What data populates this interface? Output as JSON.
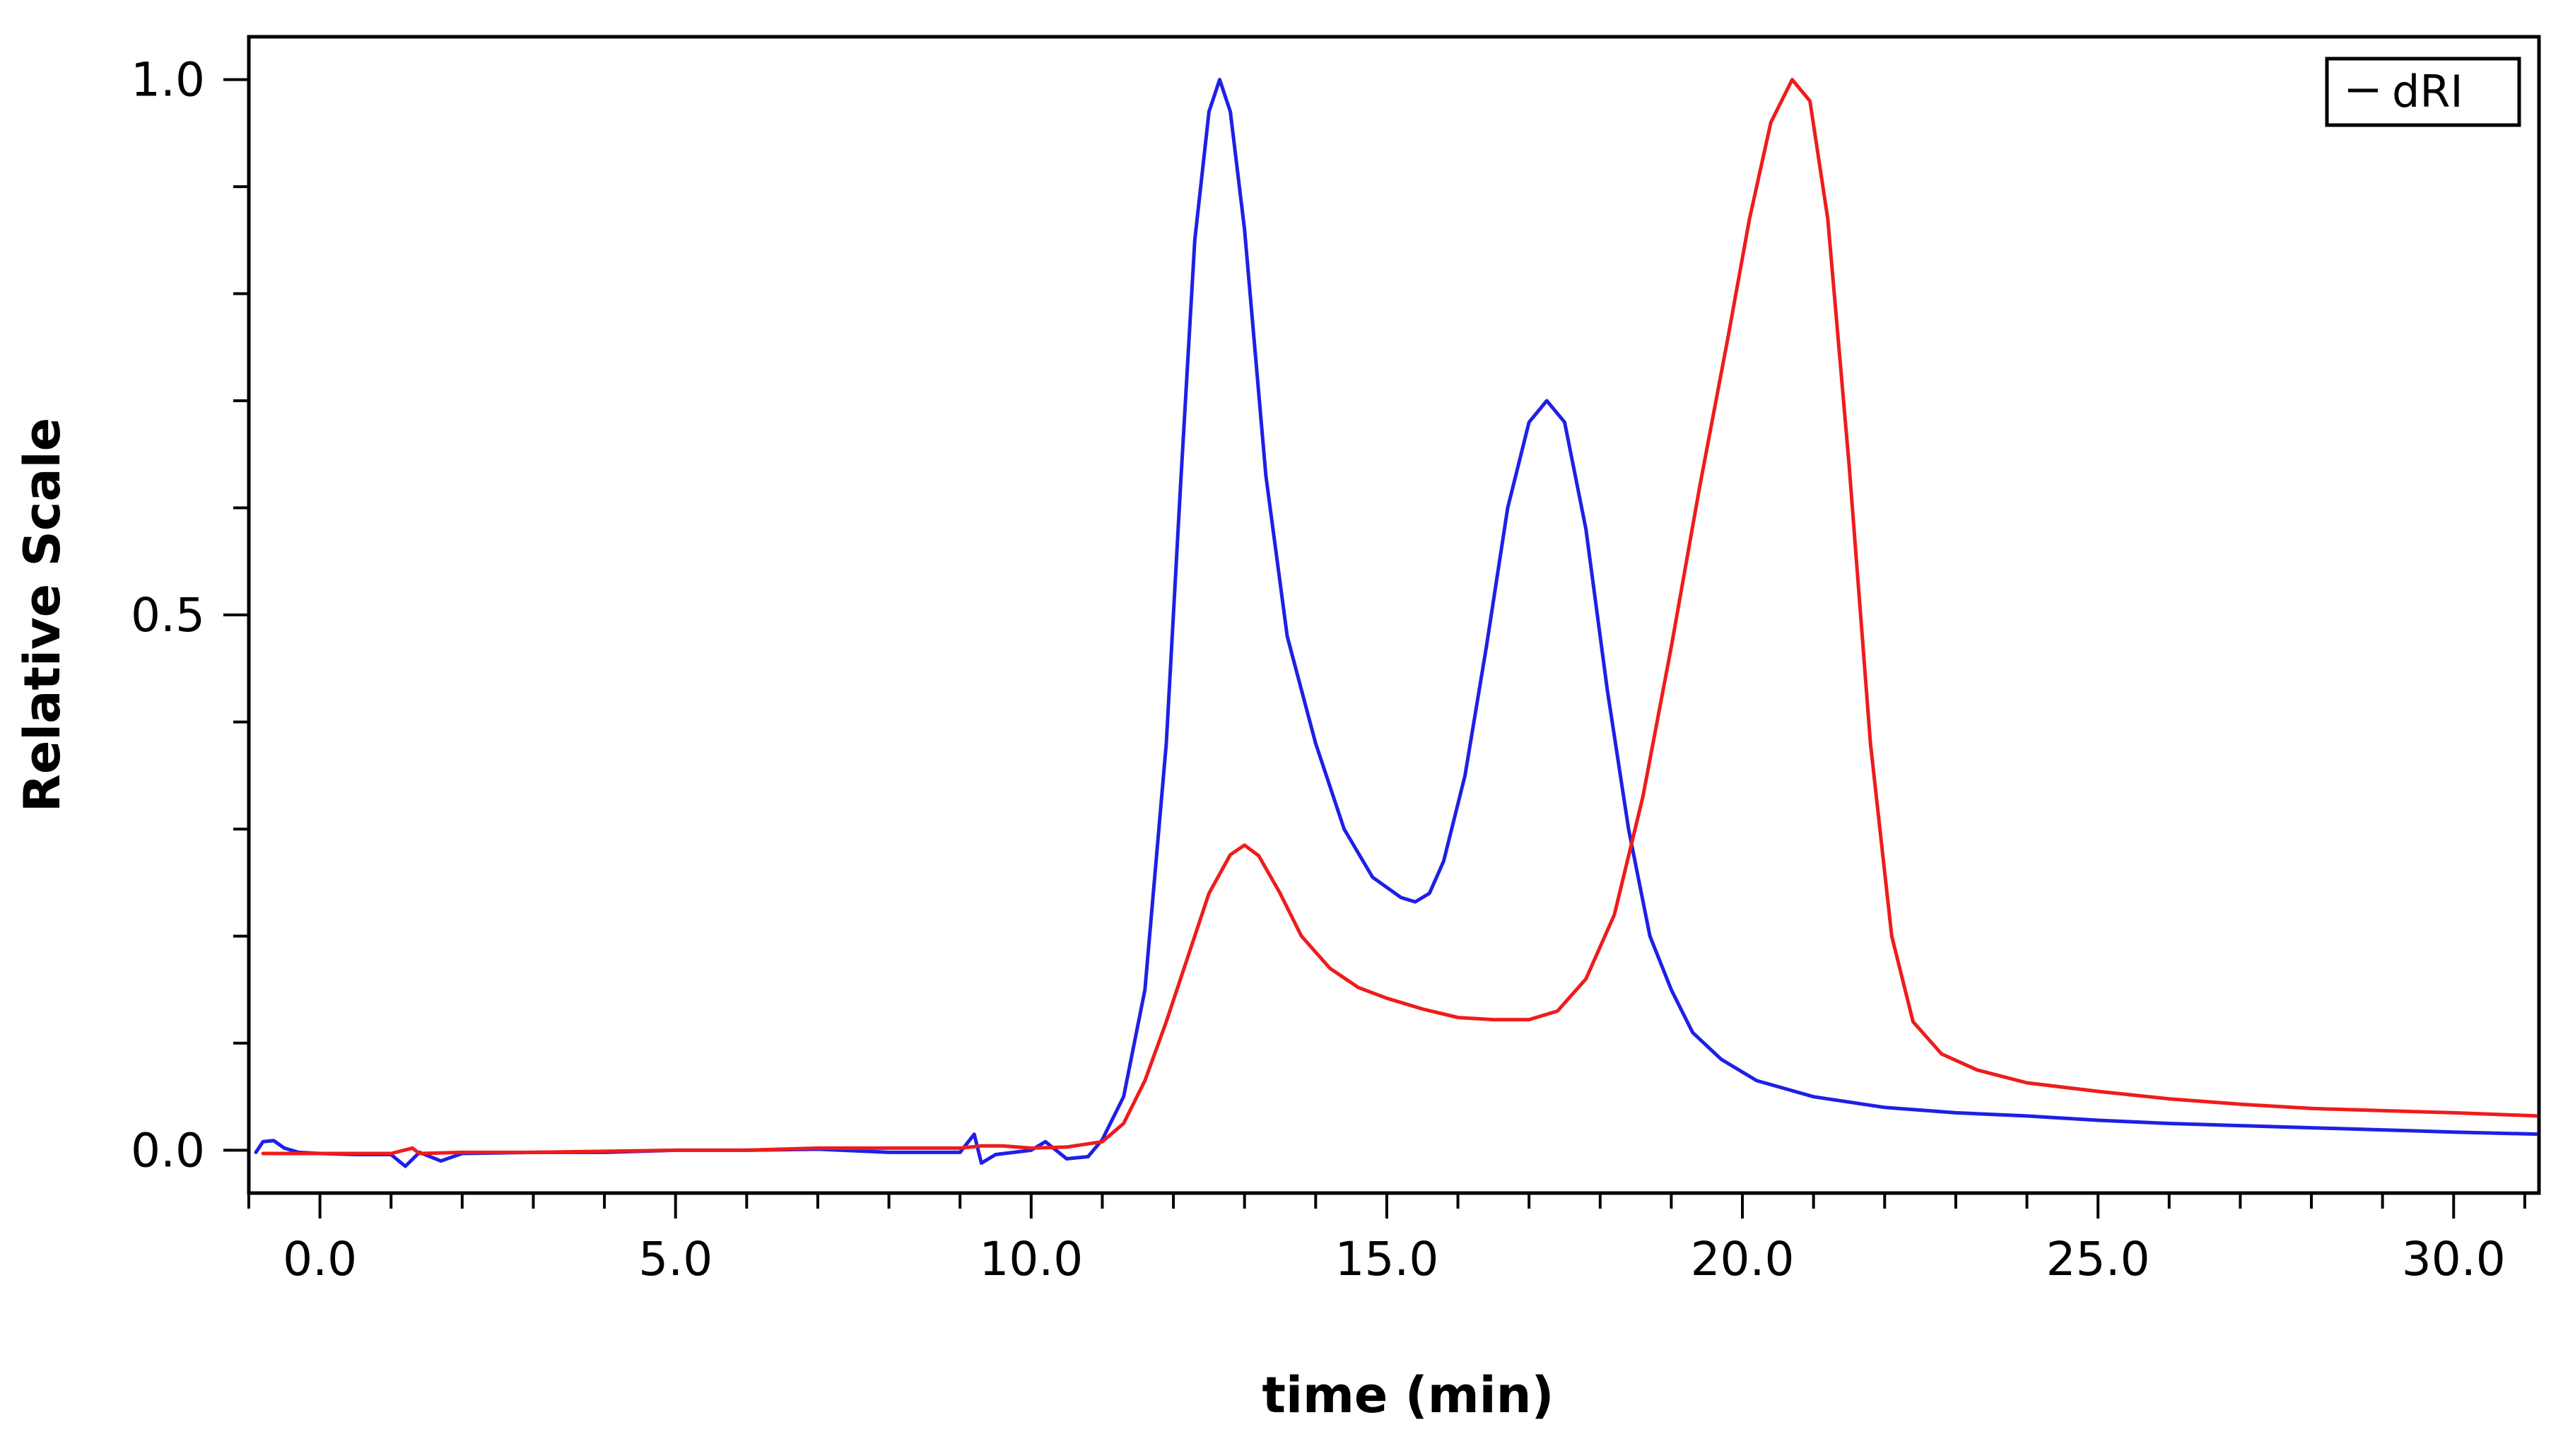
{
  "chart_data": {
    "type": "line",
    "title": "",
    "xlabel": "time (min)",
    "ylabel": "Relative Scale",
    "xlim": [
      -1.0,
      31.2
    ],
    "ylim": [
      -0.04,
      1.04
    ],
    "xticks_major": [
      0.0,
      5.0,
      10.0,
      15.0,
      20.0,
      25.0,
      30.0
    ],
    "xtick_labels": [
      "0.0",
      "5.0",
      "10.0",
      "15.0",
      "20.0",
      "25.0",
      "30.0"
    ],
    "xticks_minor_step": 1.0,
    "yticks_major": [
      0.0,
      0.5,
      1.0
    ],
    "ytick_labels": [
      "0.0",
      "0.5",
      "1.0"
    ],
    "yticks_minor_step": 0.1,
    "grid": false,
    "legend": {
      "entries": [
        "dRI"
      ],
      "placement": "top-right"
    },
    "series": [
      {
        "name": "blue trace",
        "color": "#1f1fe6",
        "points": [
          [
            -0.9,
            -0.002
          ],
          [
            -0.8,
            0.008
          ],
          [
            -0.65,
            0.009
          ],
          [
            -0.5,
            0.002
          ],
          [
            -0.3,
            -0.002
          ],
          [
            0.0,
            -0.003
          ],
          [
            0.5,
            -0.004
          ],
          [
            1.0,
            -0.004
          ],
          [
            1.2,
            -0.015
          ],
          [
            1.4,
            -0.002
          ],
          [
            1.7,
            -0.01
          ],
          [
            2.0,
            -0.003
          ],
          [
            3.0,
            -0.002
          ],
          [
            4.0,
            -0.002
          ],
          [
            5.0,
            0.0
          ],
          [
            6.0,
            0.0
          ],
          [
            7.0,
            0.001
          ],
          [
            8.0,
            -0.002
          ],
          [
            9.0,
            -0.002
          ],
          [
            9.2,
            0.015
          ],
          [
            9.3,
            -0.012
          ],
          [
            9.5,
            -0.004
          ],
          [
            10.0,
            0.0
          ],
          [
            10.2,
            0.008
          ],
          [
            10.5,
            -0.008
          ],
          [
            10.8,
            -0.006
          ],
          [
            11.0,
            0.01
          ],
          [
            11.3,
            0.05
          ],
          [
            11.6,
            0.15
          ],
          [
            11.9,
            0.38
          ],
          [
            12.1,
            0.62
          ],
          [
            12.3,
            0.85
          ],
          [
            12.5,
            0.97
          ],
          [
            12.65,
            1.0
          ],
          [
            12.8,
            0.97
          ],
          [
            13.0,
            0.86
          ],
          [
            13.3,
            0.63
          ],
          [
            13.6,
            0.48
          ],
          [
            14.0,
            0.38
          ],
          [
            14.4,
            0.3
          ],
          [
            14.8,
            0.255
          ],
          [
            15.2,
            0.236
          ],
          [
            15.4,
            0.232
          ],
          [
            15.6,
            0.24
          ],
          [
            15.8,
            0.27
          ],
          [
            16.1,
            0.35
          ],
          [
            16.4,
            0.47
          ],
          [
            16.7,
            0.6
          ],
          [
            17.0,
            0.68
          ],
          [
            17.25,
            0.7
          ],
          [
            17.5,
            0.68
          ],
          [
            17.8,
            0.58
          ],
          [
            18.1,
            0.43
          ],
          [
            18.4,
            0.3
          ],
          [
            18.7,
            0.2
          ],
          [
            19.0,
            0.15
          ],
          [
            19.3,
            0.11
          ],
          [
            19.7,
            0.085
          ],
          [
            20.2,
            0.065
          ],
          [
            21.0,
            0.05
          ],
          [
            22.0,
            0.04
          ],
          [
            23.0,
            0.035
          ],
          [
            24.0,
            0.032
          ],
          [
            25.0,
            0.028
          ],
          [
            26.0,
            0.025
          ],
          [
            27.0,
            0.023
          ],
          [
            28.0,
            0.021
          ],
          [
            29.0,
            0.019
          ],
          [
            30.0,
            0.017
          ],
          [
            31.2,
            0.015
          ]
        ]
      },
      {
        "name": "red trace",
        "color": "#ee1c1c",
        "points": [
          [
            -0.8,
            -0.003
          ],
          [
            0.0,
            -0.003
          ],
          [
            1.0,
            -0.003
          ],
          [
            1.3,
            0.002
          ],
          [
            1.4,
            -0.003
          ],
          [
            2.0,
            -0.002
          ],
          [
            3.0,
            -0.002
          ],
          [
            4.0,
            -0.001
          ],
          [
            5.0,
            0.0
          ],
          [
            6.0,
            0.0
          ],
          [
            7.0,
            0.002
          ],
          [
            8.0,
            0.002
          ],
          [
            9.0,
            0.002
          ],
          [
            9.3,
            0.004
          ],
          [
            9.6,
            0.004
          ],
          [
            10.0,
            0.002
          ],
          [
            10.5,
            0.003
          ],
          [
            11.0,
            0.008
          ],
          [
            11.3,
            0.025
          ],
          [
            11.6,
            0.065
          ],
          [
            11.9,
            0.12
          ],
          [
            12.2,
            0.18
          ],
          [
            12.5,
            0.24
          ],
          [
            12.8,
            0.276
          ],
          [
            13.0,
            0.285
          ],
          [
            13.2,
            0.275
          ],
          [
            13.5,
            0.24
          ],
          [
            13.8,
            0.2
          ],
          [
            14.2,
            0.17
          ],
          [
            14.6,
            0.152
          ],
          [
            15.0,
            0.142
          ],
          [
            15.5,
            0.132
          ],
          [
            16.0,
            0.124
          ],
          [
            16.5,
            0.122
          ],
          [
            17.0,
            0.122
          ],
          [
            17.4,
            0.13
          ],
          [
            17.8,
            0.16
          ],
          [
            18.2,
            0.22
          ],
          [
            18.6,
            0.33
          ],
          [
            19.0,
            0.47
          ],
          [
            19.4,
            0.62
          ],
          [
            19.8,
            0.76
          ],
          [
            20.1,
            0.87
          ],
          [
            20.4,
            0.96
          ],
          [
            20.7,
            1.0
          ],
          [
            20.95,
            0.98
          ],
          [
            21.2,
            0.87
          ],
          [
            21.5,
            0.64
          ],
          [
            21.8,
            0.38
          ],
          [
            22.1,
            0.2
          ],
          [
            22.4,
            0.12
          ],
          [
            22.8,
            0.09
          ],
          [
            23.3,
            0.075
          ],
          [
            24.0,
            0.063
          ],
          [
            25.0,
            0.055
          ],
          [
            26.0,
            0.048
          ],
          [
            27.0,
            0.043
          ],
          [
            28.0,
            0.039
          ],
          [
            29.0,
            0.037
          ],
          [
            30.0,
            0.035
          ],
          [
            31.2,
            0.032
          ]
        ]
      }
    ]
  }
}
